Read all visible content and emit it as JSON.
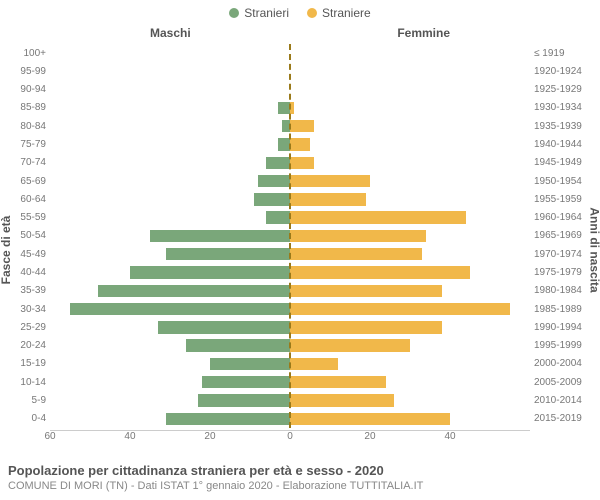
{
  "legend": {
    "male_label": "Stranieri",
    "female_label": "Straniere"
  },
  "headers": {
    "male": "Maschi",
    "female": "Femmine"
  },
  "axis_titles": {
    "left": "Fasce di età",
    "right": "Anni di nascita"
  },
  "chart": {
    "type": "population-pyramid",
    "male_color": "#7aa77a",
    "female_color": "#f1b84a",
    "centerline_color": "#9a7a1a",
    "background": "#ffffff",
    "label_color": "#777777",
    "label_fontsize": 10,
    "xmax": 60,
    "xticks_left": [
      60,
      40,
      20
    ],
    "xtick_center": 0,
    "xticks_right": [
      20,
      40
    ],
    "rows": [
      {
        "age": "100+",
        "birth": "≤ 1919",
        "m": 0,
        "f": 0
      },
      {
        "age": "95-99",
        "birth": "1920-1924",
        "m": 0,
        "f": 0
      },
      {
        "age": "90-94",
        "birth": "1925-1929",
        "m": 0,
        "f": 0
      },
      {
        "age": "85-89",
        "birth": "1930-1934",
        "m": 3,
        "f": 1
      },
      {
        "age": "80-84",
        "birth": "1935-1939",
        "m": 2,
        "f": 6
      },
      {
        "age": "75-79",
        "birth": "1940-1944",
        "m": 3,
        "f": 5
      },
      {
        "age": "70-74",
        "birth": "1945-1949",
        "m": 6,
        "f": 6
      },
      {
        "age": "65-69",
        "birth": "1950-1954",
        "m": 8,
        "f": 20
      },
      {
        "age": "60-64",
        "birth": "1955-1959",
        "m": 9,
        "f": 19
      },
      {
        "age": "55-59",
        "birth": "1960-1964",
        "m": 6,
        "f": 44
      },
      {
        "age": "50-54",
        "birth": "1965-1969",
        "m": 35,
        "f": 34
      },
      {
        "age": "45-49",
        "birth": "1970-1974",
        "m": 31,
        "f": 33
      },
      {
        "age": "40-44",
        "birth": "1975-1979",
        "m": 40,
        "f": 45
      },
      {
        "age": "35-39",
        "birth": "1980-1984",
        "m": 48,
        "f": 38
      },
      {
        "age": "30-34",
        "birth": "1985-1989",
        "m": 55,
        "f": 55
      },
      {
        "age": "25-29",
        "birth": "1990-1994",
        "m": 33,
        "f": 38
      },
      {
        "age": "20-24",
        "birth": "1995-1999",
        "m": 26,
        "f": 30
      },
      {
        "age": "15-19",
        "birth": "2000-2004",
        "m": 20,
        "f": 12
      },
      {
        "age": "10-14",
        "birth": "2005-2009",
        "m": 22,
        "f": 24
      },
      {
        "age": "5-9",
        "birth": "2010-2014",
        "m": 23,
        "f": 26
      },
      {
        "age": "0-4",
        "birth": "2015-2019",
        "m": 31,
        "f": 40
      }
    ]
  },
  "footer": {
    "title": "Popolazione per cittadinanza straniera per età e sesso - 2020",
    "subtitle": "COMUNE DI MORI (TN) - Dati ISTAT 1° gennaio 2020 - Elaborazione TUTTITALIA.IT"
  }
}
